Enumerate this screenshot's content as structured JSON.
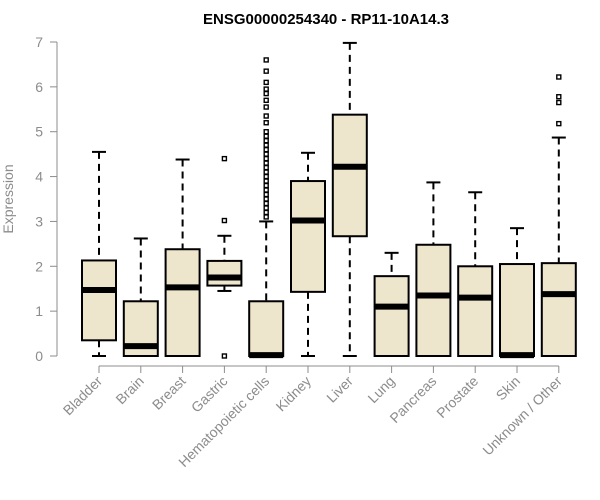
{
  "chart_data": {
    "type": "boxplot",
    "title": "ENSG00000254340 - RP11-10A14.3",
    "ylabel": "Expression",
    "xlabel": "",
    "ylim": [
      0,
      7
    ],
    "yticks": [
      "0",
      "1",
      "2",
      "3",
      "4",
      "5",
      "6",
      "7"
    ],
    "grid": false,
    "legend": "none",
    "colors": {
      "box_fill": "#ede6cc",
      "stroke": "#000000",
      "axis_text": "#8c8c8c",
      "title": "#000000"
    },
    "categories": [
      "Bladder",
      "Brain",
      "Breast",
      "Gastric",
      "Hematopoietic cells",
      "Kidney",
      "Liver",
      "Lung",
      "Pancreas",
      "Prostate",
      "Skin",
      "Unknown / Other"
    ],
    "boxes": [
      {
        "category": "Bladder",
        "min": 0.0,
        "q1": 0.35,
        "median": 1.47,
        "q3": 2.13,
        "max": 4.55,
        "outliers": []
      },
      {
        "category": "Brain",
        "min": 0.0,
        "q1": 0.0,
        "median": 0.22,
        "q3": 1.22,
        "max": 2.62,
        "outliers": []
      },
      {
        "category": "Breast",
        "min": 0.0,
        "q1": 0.0,
        "median": 1.53,
        "q3": 2.38,
        "max": 4.38,
        "outliers": []
      },
      {
        "category": "Gastric",
        "min": 1.45,
        "q1": 1.57,
        "median": 1.75,
        "q3": 2.12,
        "max": 2.68,
        "outliers": [
          0.0,
          3.02,
          4.4
        ]
      },
      {
        "category": "Hematopoietic cells",
        "min": 0.0,
        "q1": 0.0,
        "median": 0.02,
        "q3": 1.22,
        "max": 3.0,
        "outliers": [
          3.1,
          3.2,
          3.3,
          3.4,
          3.5,
          3.6,
          3.7,
          3.8,
          3.9,
          4.0,
          4.1,
          4.2,
          4.3,
          4.4,
          4.5,
          4.6,
          4.7,
          4.8,
          4.9,
          5.0,
          5.2,
          5.35,
          5.55,
          5.7,
          5.85,
          5.95,
          6.1,
          6.35,
          6.6
        ]
      },
      {
        "category": "Kidney",
        "min": 0.0,
        "q1": 1.43,
        "median": 3.02,
        "q3": 3.9,
        "max": 4.53,
        "outliers": []
      },
      {
        "category": "Liver",
        "min": 0.0,
        "q1": 2.67,
        "median": 4.22,
        "q3": 5.38,
        "max": 6.98,
        "outliers": []
      },
      {
        "category": "Lung",
        "min": 0.0,
        "q1": 0.0,
        "median": 1.1,
        "q3": 1.78,
        "max": 2.3,
        "outliers": []
      },
      {
        "category": "Pancreas",
        "min": 0.0,
        "q1": 0.0,
        "median": 1.35,
        "q3": 2.48,
        "max": 3.87,
        "outliers": []
      },
      {
        "category": "Prostate",
        "min": 0.0,
        "q1": 0.0,
        "median": 1.3,
        "q3": 2.0,
        "max": 3.65,
        "outliers": []
      },
      {
        "category": "Skin",
        "min": 0.0,
        "q1": 0.0,
        "median": 0.02,
        "q3": 2.05,
        "max": 2.85,
        "outliers": []
      },
      {
        "category": "Unknown / Other",
        "min": 0.0,
        "q1": 0.0,
        "median": 1.38,
        "q3": 2.07,
        "max": 4.87,
        "outliers": [
          5.18,
          5.65,
          5.78,
          6.22
        ]
      }
    ]
  }
}
